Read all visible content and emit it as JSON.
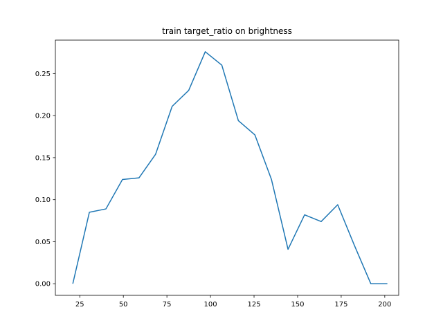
{
  "chart_data": {
    "type": "line",
    "title": "train target_ratio on brightness",
    "xlabel": "",
    "ylabel": "",
    "xlim": [
      11,
      208
    ],
    "ylim": [
      -0.0138,
      0.2898
    ],
    "x_ticks": [
      25,
      50,
      75,
      100,
      125,
      150,
      175,
      200
    ],
    "x_tick_labels": [
      "25",
      "50",
      "75",
      "100",
      "125",
      "150",
      "175",
      "200"
    ],
    "y_ticks": [
      0.0,
      0.05,
      0.1,
      0.15,
      0.2,
      0.25
    ],
    "y_tick_labels": [
      "0.00",
      "0.05",
      "0.10",
      "0.15",
      "0.20",
      "0.25"
    ],
    "grid": false,
    "legend": "none",
    "series": [
      {
        "color": "#1f77b4",
        "x": [
          21,
          30.5,
          40,
          49.5,
          59,
          68.5,
          78,
          87.5,
          97,
          106.5,
          116,
          125.5,
          135,
          144.5,
          154,
          163.5,
          173,
          182.5,
          192,
          201.5
        ],
        "y": [
          0.0,
          0.085,
          0.089,
          0.124,
          0.126,
          0.154,
          0.211,
          0.23,
          0.276,
          0.26,
          0.194,
          0.177,
          0.124,
          0.041,
          0.082,
          0.074,
          0.094,
          0.046,
          0.0,
          0.0
        ]
      }
    ]
  }
}
